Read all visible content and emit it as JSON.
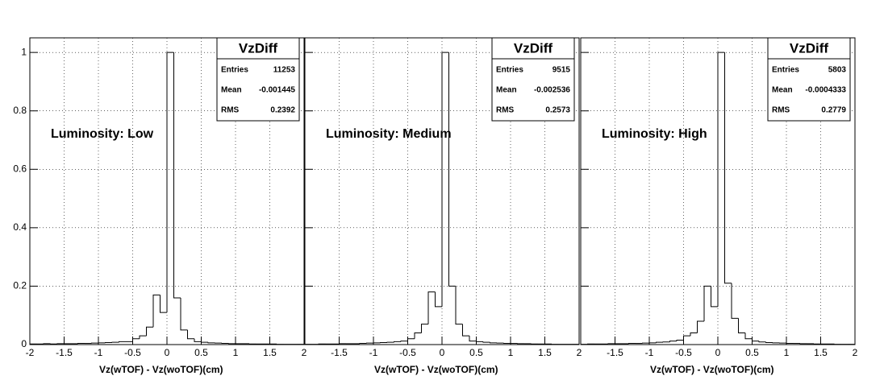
{
  "chart_data": [
    {
      "type": "histogram",
      "annotation": "Luminosity: Low",
      "xlabel": "Vz(wTOF) - Vz(woTOF)(cm)",
      "bins": [
        -2,
        -1.9,
        -1.8,
        -1.7,
        -1.6,
        -1.5,
        -1.4,
        -1.3,
        -1.2,
        -1.1,
        -1,
        -0.9,
        -0.8,
        -0.7,
        -0.6,
        -0.5,
        -0.4,
        -0.3,
        -0.2,
        -0.1,
        0,
        0.1,
        0.2,
        0.3,
        0.4,
        0.5,
        0.6,
        0.7,
        0.8,
        0.9,
        1,
        1.1,
        1.2,
        1.3,
        1.4,
        1.5,
        1.6,
        1.7,
        1.8,
        1.9,
        2
      ],
      "values": [
        0.002,
        0.002,
        0.003,
        0.002,
        0.003,
        0.003,
        0.003,
        0.004,
        0.004,
        0.005,
        0.006,
        0.007,
        0.008,
        0.01,
        0.01,
        0.02,
        0.03,
        0.06,
        0.17,
        0.11,
        1.0,
        0.16,
        0.05,
        0.02,
        0.01,
        0.008,
        0.006,
        0.005,
        0.004,
        0.003,
        0.003,
        0.003,
        0.002,
        0.002,
        0.002,
        0.002,
        0.001,
        0.001,
        0.001,
        0.001
      ],
      "color": "#000000",
      "xlim": [
        -2,
        2
      ],
      "xticks": [
        -2,
        -1.5,
        -1,
        -0.5,
        0,
        0.5,
        1,
        1.5,
        2
      ],
      "ylim": [
        0,
        1.05
      ],
      "yticks": [
        0,
        0.2,
        0.4,
        0.6,
        0.8,
        1
      ],
      "grid": true,
      "stats": {
        "title": "VzDiff",
        "labels": [
          "Entries",
          "Mean",
          "RMS"
        ],
        "values": [
          11253,
          -0.001445,
          0.2392
        ]
      }
    },
    {
      "type": "histogram",
      "annotation": "Luminosity: Medium",
      "xlabel": "Vz(wTOF) - Vz(woTOF)(cm)",
      "bins": [
        -2,
        -1.9,
        -1.8,
        -1.7,
        -1.6,
        -1.5,
        -1.4,
        -1.3,
        -1.2,
        -1.1,
        -1,
        -0.9,
        -0.8,
        -0.7,
        -0.6,
        -0.5,
        -0.4,
        -0.3,
        -0.2,
        -0.1,
        0,
        0.1,
        0.2,
        0.3,
        0.4,
        0.5,
        0.6,
        0.7,
        0.8,
        0.9,
        1,
        1.1,
        1.2,
        1.3,
        1.4,
        1.5,
        1.6,
        1.7,
        1.8,
        1.9,
        2
      ],
      "values": [
        0.001,
        0.001,
        0.002,
        0.002,
        0.002,
        0.003,
        0.003,
        0.003,
        0.004,
        0.005,
        0.006,
        0.007,
        0.008,
        0.01,
        0.012,
        0.02,
        0.04,
        0.07,
        0.18,
        0.13,
        1.0,
        0.2,
        0.07,
        0.03,
        0.012,
        0.01,
        0.008,
        0.006,
        0.005,
        0.004,
        0.004,
        0.003,
        0.003,
        0.002,
        0.002,
        0.002,
        0.001,
        0.001,
        0.001,
        0.001
      ],
      "color": "#000000",
      "xlim": [
        -2,
        2
      ],
      "xticks": [
        -1.5,
        -1,
        -0.5,
        0,
        0.5,
        1,
        1.5,
        2
      ],
      "ylim": [
        0,
        1.05
      ],
      "grid": true,
      "stats": {
        "title": "VzDiff",
        "labels": [
          "Entries",
          "Mean",
          "RMS"
        ],
        "values": [
          9515,
          -0.002536,
          0.2573
        ]
      }
    },
    {
      "type": "histogram",
      "annotation": "Luminosity: High",
      "xlabel": "Vz(wTOF) - Vz(woTOF)(cm)",
      "bins": [
        -2,
        -1.9,
        -1.8,
        -1.7,
        -1.6,
        -1.5,
        -1.4,
        -1.3,
        -1.2,
        -1.1,
        -1,
        -0.9,
        -0.8,
        -0.7,
        -0.6,
        -0.5,
        -0.4,
        -0.3,
        -0.2,
        -0.1,
        0,
        0.1,
        0.2,
        0.3,
        0.4,
        0.5,
        0.6,
        0.7,
        0.8,
        0.9,
        1,
        1.1,
        1.2,
        1.3,
        1.4,
        1.5,
        1.6,
        1.7,
        1.8,
        1.9,
        2
      ],
      "values": [
        0.001,
        0.002,
        0.002,
        0.002,
        0.003,
        0.003,
        0.003,
        0.004,
        0.004,
        0.005,
        0.006,
        0.008,
        0.009,
        0.012,
        0.015,
        0.03,
        0.04,
        0.08,
        0.2,
        0.13,
        1.0,
        0.21,
        0.09,
        0.04,
        0.02,
        0.012,
        0.009,
        0.007,
        0.006,
        0.005,
        0.004,
        0.004,
        0.003,
        0.003,
        0.002,
        0.002,
        0.002,
        0.001,
        0.001,
        0.001
      ],
      "color": "#000000",
      "xlim": [
        -2,
        2
      ],
      "xticks": [
        -1.5,
        -1,
        -0.5,
        0,
        0.5,
        1,
        1.5,
        2
      ],
      "ylim": [
        0,
        1.05
      ],
      "grid": true,
      "stats": {
        "title": "VzDiff",
        "labels": [
          "Entries",
          "Mean",
          "RMS"
        ],
        "values": [
          5803,
          -0.0004333,
          0.2779
        ]
      }
    }
  ]
}
